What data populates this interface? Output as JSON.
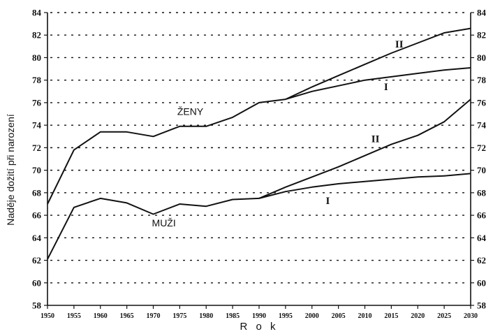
{
  "chart_data": {
    "type": "line",
    "ylabel": "Naděje dožití při narození",
    "xlabel": "R o k",
    "x": [
      1950,
      1955,
      1960,
      1965,
      1970,
      1975,
      1980,
      1985,
      1990,
      1995,
      2000,
      2005,
      2010,
      2015,
      2020,
      2025,
      2030
    ],
    "ylim": [
      58,
      84
    ],
    "yticks": [
      58,
      60,
      62,
      64,
      66,
      68,
      70,
      72,
      74,
      76,
      78,
      80,
      82,
      84
    ],
    "grid": true,
    "axes_both_sides": true,
    "series": [
      {
        "name": "ŽENY",
        "x": [
          1950,
          1955,
          1960,
          1965,
          1970,
          1975,
          1980,
          1985,
          1990,
          1995
        ],
        "values": [
          67.0,
          71.8,
          73.4,
          73.4,
          73.0,
          73.9,
          73.9,
          74.7,
          76.0,
          76.3
        ]
      },
      {
        "name": "II",
        "x": [
          1995,
          2000,
          2005,
          2010,
          2015,
          2020,
          2025,
          2030
        ],
        "values": [
          76.3,
          77.4,
          78.4,
          79.4,
          80.4,
          81.3,
          82.2,
          82.6
        ]
      },
      {
        "name": "I",
        "x": [
          1995,
          2000,
          2005,
          2010,
          2015,
          2020,
          2025,
          2030
        ],
        "values": [
          76.3,
          77.0,
          77.5,
          78.0,
          78.3,
          78.6,
          78.9,
          79.1
        ]
      },
      {
        "name": "MUŽI",
        "x": [
          1950,
          1955,
          1960,
          1965,
          1970,
          1975,
          1980,
          1985,
          1990
        ],
        "values": [
          62.1,
          66.7,
          67.5,
          67.1,
          66.1,
          67.0,
          66.8,
          67.4,
          67.5
        ]
      },
      {
        "name": "II",
        "x": [
          1990,
          1995,
          2000,
          2005,
          2010,
          2015,
          2020,
          2025,
          2030
        ],
        "values": [
          67.5,
          68.5,
          69.4,
          70.3,
          71.3,
          72.3,
          73.1,
          74.3,
          76.3
        ]
      },
      {
        "name": "I",
        "x": [
          1990,
          1995,
          2000,
          2005,
          2010,
          2015,
          2020,
          2025,
          2030
        ],
        "values": [
          67.5,
          68.1,
          68.5,
          68.8,
          69.0,
          69.2,
          69.4,
          69.5,
          69.7
        ]
      }
    ],
    "annotations": [
      {
        "text": "ŽENY",
        "x": 1977,
        "y": 74.9,
        "style": "label"
      },
      {
        "text": "II",
        "x": 2016.5,
        "y": 80.9,
        "style": "roman"
      },
      {
        "text": "I",
        "x": 2014,
        "y": 77.1,
        "style": "roman"
      },
      {
        "text": "II",
        "x": 2012,
        "y": 72.5,
        "style": "roman"
      },
      {
        "text": "I",
        "x": 2003,
        "y": 67.0,
        "style": "roman"
      },
      {
        "text": "MUŽI",
        "x": 1972,
        "y": 65.0,
        "style": "label"
      }
    ]
  }
}
